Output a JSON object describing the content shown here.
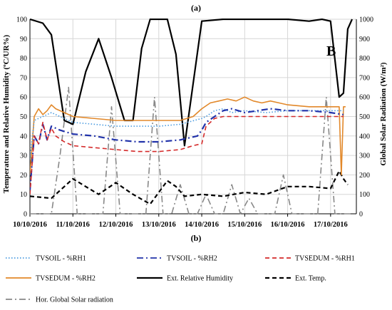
{
  "top_caption": "(a)",
  "bottom_caption": "(b)",
  "panel_label": "B",
  "chart_data": {
    "type": "line",
    "ylabel_left": "Temperature and Relative Humidity (ºC/UR%)",
    "ylabel_right": "Global Solar Radiation (W/m²)",
    "ylim_left": [
      0,
      100
    ],
    "ylim_right": [
      0,
      1000
    ],
    "yticks_left": [
      "0",
      "10",
      "20",
      "30",
      "40",
      "50",
      "60",
      "70",
      "80",
      "90",
      "100"
    ],
    "yticks_right": [
      "0",
      "100",
      "200",
      "300",
      "400",
      "500",
      "600",
      "700",
      "800",
      "900",
      "1000"
    ],
    "x_tick_labels": [
      "10/10/2016",
      "11/10/2016",
      "12/10/2016",
      "13/10/2016",
      "14/10/2016",
      "15/10/2016",
      "16/10/2016",
      "17/10/2016"
    ],
    "x_range_days": [
      0,
      7.6
    ],
    "grid": true,
    "legend_position": "bottom",
    "series": [
      {
        "name": "TVSOIL - %RH1",
        "color": "#4a9be0",
        "style": "dotted",
        "axis": "left",
        "x": [
          0,
          0.1,
          0.3,
          0.5,
          1,
          2,
          3,
          3.5,
          4,
          4.1,
          4.3,
          4.5,
          4.7,
          5,
          5.5,
          6,
          6.5,
          7,
          7.3
        ],
        "y": [
          28,
          48,
          50,
          52,
          47,
          45,
          45,
          46,
          49,
          50,
          53,
          54,
          52,
          53,
          52,
          53,
          53,
          53,
          53
        ]
      },
      {
        "name": "TVSOIL - %RH2",
        "color": "#2233aa",
        "style": "dashdot",
        "axis": "left",
        "x": [
          0,
          0.1,
          0.2,
          0.3,
          0.4,
          0.5,
          0.6,
          0.7,
          1,
          1.5,
          2,
          2.5,
          3,
          3.5,
          3.9,
          4,
          4.1,
          4.3,
          4.5,
          4.7,
          5,
          5.3,
          5.6,
          6,
          6.5,
          7,
          7.3
        ],
        "y": [
          12,
          40,
          36,
          46,
          38,
          45,
          44,
          43,
          41,
          40,
          38,
          37,
          37,
          38,
          40,
          43,
          47,
          50,
          53,
          54,
          52,
          53,
          54,
          53,
          53,
          52,
          51
        ]
      },
      {
        "name": "TVSEDUM - %RH1",
        "color": "#d42a2a",
        "style": "dashed",
        "axis": "left",
        "x": [
          0,
          0.1,
          0.2,
          0.3,
          0.4,
          0.5,
          0.6,
          0.8,
          1,
          1.5,
          2,
          2.5,
          3,
          3.5,
          3.8,
          4,
          4.1,
          4.3,
          4.5,
          5,
          6,
          7,
          7.3
        ],
        "y": [
          10,
          40,
          36,
          47,
          38,
          44,
          40,
          37,
          35,
          34,
          33,
          32,
          32,
          33,
          35,
          36,
          45,
          49,
          50,
          50,
          50,
          50,
          50
        ]
      },
      {
        "name": "TVSEDUM - %RH2",
        "color": "#e2882a",
        "style": "solid",
        "axis": "left",
        "x": [
          0,
          0.1,
          0.2,
          0.3,
          0.4,
          0.5,
          0.6,
          0.8,
          1,
          2,
          3,
          3.5,
          3.8,
          4,
          4.2,
          4.4,
          4.6,
          4.8,
          5,
          5.2,
          5.4,
          5.6,
          5.8,
          6,
          6.5,
          7,
          7.2,
          7.25,
          7.3,
          7.35
        ],
        "y": [
          20,
          50,
          54,
          51,
          53,
          56,
          54,
          52,
          50,
          48,
          48,
          48,
          50,
          54,
          57,
          58,
          59,
          58,
          60,
          58,
          57,
          58,
          57,
          56,
          55,
          55,
          55,
          20,
          55,
          55
        ]
      },
      {
        "name": "Ext. Relative Humidity",
        "color": "#000000",
        "style": "solid",
        "axis": "left",
        "x": [
          0,
          0.3,
          0.5,
          0.8,
          1,
          1.3,
          1.6,
          1.9,
          2.2,
          2.4,
          2.6,
          2.8,
          3,
          3.2,
          3.4,
          3.6,
          3.8,
          4,
          4.5,
          5,
          5.5,
          6,
          6.5,
          6.8,
          7,
          7.2,
          7.3,
          7.4,
          7.5
        ],
        "y": [
          100,
          98,
          92,
          48,
          46,
          73,
          90,
          70,
          48,
          48,
          85,
          100,
          100,
          100,
          82,
          35,
          67,
          99,
          100,
          100,
          100,
          100,
          99,
          100,
          99,
          60,
          62,
          95,
          100
        ]
      },
      {
        "name": "Ext. Temp.",
        "color": "#000000",
        "style": "dashed",
        "axis": "left",
        "x": [
          0,
          0.5,
          1,
          1.3,
          1.6,
          2,
          2.4,
          2.8,
          3.2,
          3.4,
          3.6,
          4,
          4.5,
          5,
          5.5,
          6,
          6.5,
          7,
          7.2,
          7.3,
          7.4
        ],
        "y": [
          9,
          8,
          18,
          14,
          10,
          16,
          10,
          5,
          17,
          14,
          9,
          10,
          9,
          11,
          10,
          14,
          14,
          13,
          22,
          18,
          15
        ]
      },
      {
        "name": "Hor. Global Solar radiation",
        "color": "#888888",
        "style": "dashdot",
        "axis": "right",
        "x": [
          0,
          0.5,
          0.7,
          0.9,
          1.1,
          1.3,
          1.5,
          1.7,
          1.9,
          2.1,
          2.3,
          2.5,
          2.7,
          2.9,
          3.1,
          3.3,
          3.5,
          3.7,
          3.9,
          4.1,
          4.3,
          4.5,
          4.7,
          4.9,
          5.1,
          5.3,
          5.5,
          5.7,
          5.9,
          6.1,
          6.3,
          6.5,
          6.7,
          6.9,
          7.1,
          7.3,
          7.5
        ],
        "y": [
          0,
          0,
          300,
          650,
          0,
          0,
          0,
          0,
          550,
          0,
          0,
          0,
          0,
          600,
          0,
          0,
          150,
          0,
          0,
          100,
          0,
          0,
          150,
          0,
          80,
          0,
          0,
          0,
          200,
          0,
          0,
          0,
          0,
          600,
          0,
          0,
          0
        ]
      }
    ]
  }
}
